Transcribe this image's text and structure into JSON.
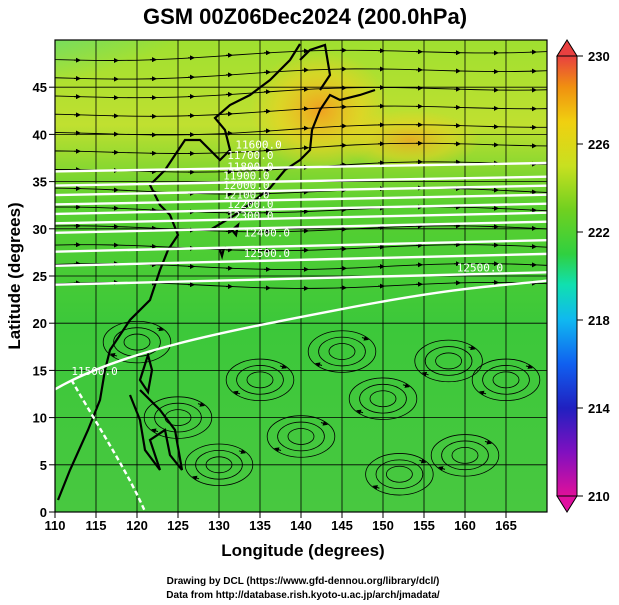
{
  "title": "GSM 00Z06Dec2024 (200.0hPa)",
  "x_axis_label": "Longitude (degrees)",
  "y_axis_label": "Latitude  (degrees)",
  "credits": {
    "line1": "Drawing by DCL (https://www.gfd-dennou.org/library/dcl/)",
    "line2": "Data from http://database.rish.kyoto-u.ac.jp/arch/jmadata/"
  },
  "map": {
    "lon_range": [
      110,
      170
    ],
    "lat_range": [
      0,
      50
    ],
    "lon_ticks": [
      "110",
      "115",
      "120",
      "125",
      "130",
      "135",
      "140",
      "145",
      "150",
      "155",
      "160",
      "165"
    ],
    "lat_ticks": [
      "0",
      "5",
      "10",
      "15",
      "20",
      "25",
      "30",
      "35",
      "40",
      "45"
    ],
    "grid": true,
    "filled_field": "temperature (shaded)",
    "vectors": "wind streamlines with arrows"
  },
  "colorbar": {
    "ticks": [
      "230",
      "226",
      "222",
      "218",
      "214",
      "210"
    ],
    "range": [
      210,
      230
    ],
    "colors": [
      "#e0109a",
      "#8010c0",
      "#2020c0",
      "#1060f0",
      "#10b8f0",
      "#10e0b0",
      "#30d040",
      "#70d020",
      "#c8e020",
      "#f0d010",
      "#f09010",
      "#e84040"
    ]
  },
  "contour_labels": [
    "12500.0",
    "12400.0",
    "12300.0",
    "12200.0",
    "12100.0",
    "12000.0",
    "11900.0",
    "11800.0",
    "11700.0",
    "11600.0",
    "11500.0",
    "12500.0"
  ]
}
